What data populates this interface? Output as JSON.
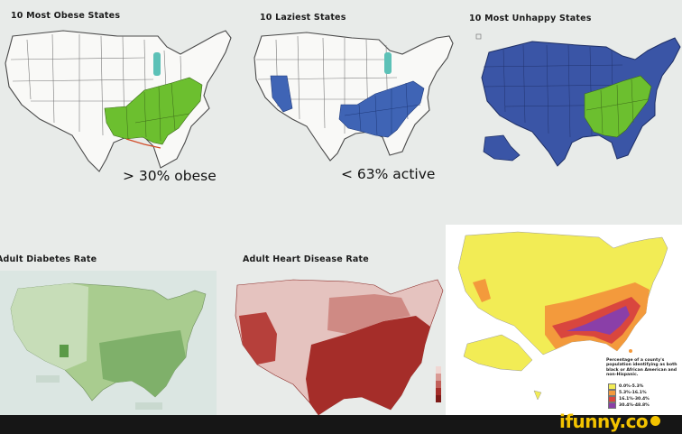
{
  "panels": {
    "obese": {
      "title": "10 Most Obese States",
      "caption": "> 30% obese",
      "highlight_color": "#6cbf2f"
    },
    "lazy": {
      "title": "10 Laziest States",
      "caption": "< 63% active",
      "highlight_color": "#3f64b5"
    },
    "unhappy": {
      "title": "10 Most Unhappy States",
      "caption": "",
      "highlight_color": "#6cbf2f",
      "base_color": "#3a55a6"
    },
    "diabetes": {
      "title": "Adult Diabetes Rate",
      "base_color": "#a9cc8f"
    },
    "heart": {
      "title": "Adult Heart Disease Rate",
      "base_color": "#a93a36"
    }
  },
  "inset": {
    "legend_title": "Percentage of a county's population identifying as both black or African American and non-Hispanic.",
    "legend": [
      {
        "label": "0.0%-5.3%",
        "color": "#f2ec55"
      },
      {
        "label": "5.3%-16.1%",
        "color": "#f39a3c"
      },
      {
        "label": "16.1%-30.4%",
        "color": "#d9463e"
      },
      {
        "label": "30.4%-48.8%",
        "color": "#8a3fa8"
      }
    ]
  },
  "watermark": {
    "text": "ifunny.co"
  }
}
